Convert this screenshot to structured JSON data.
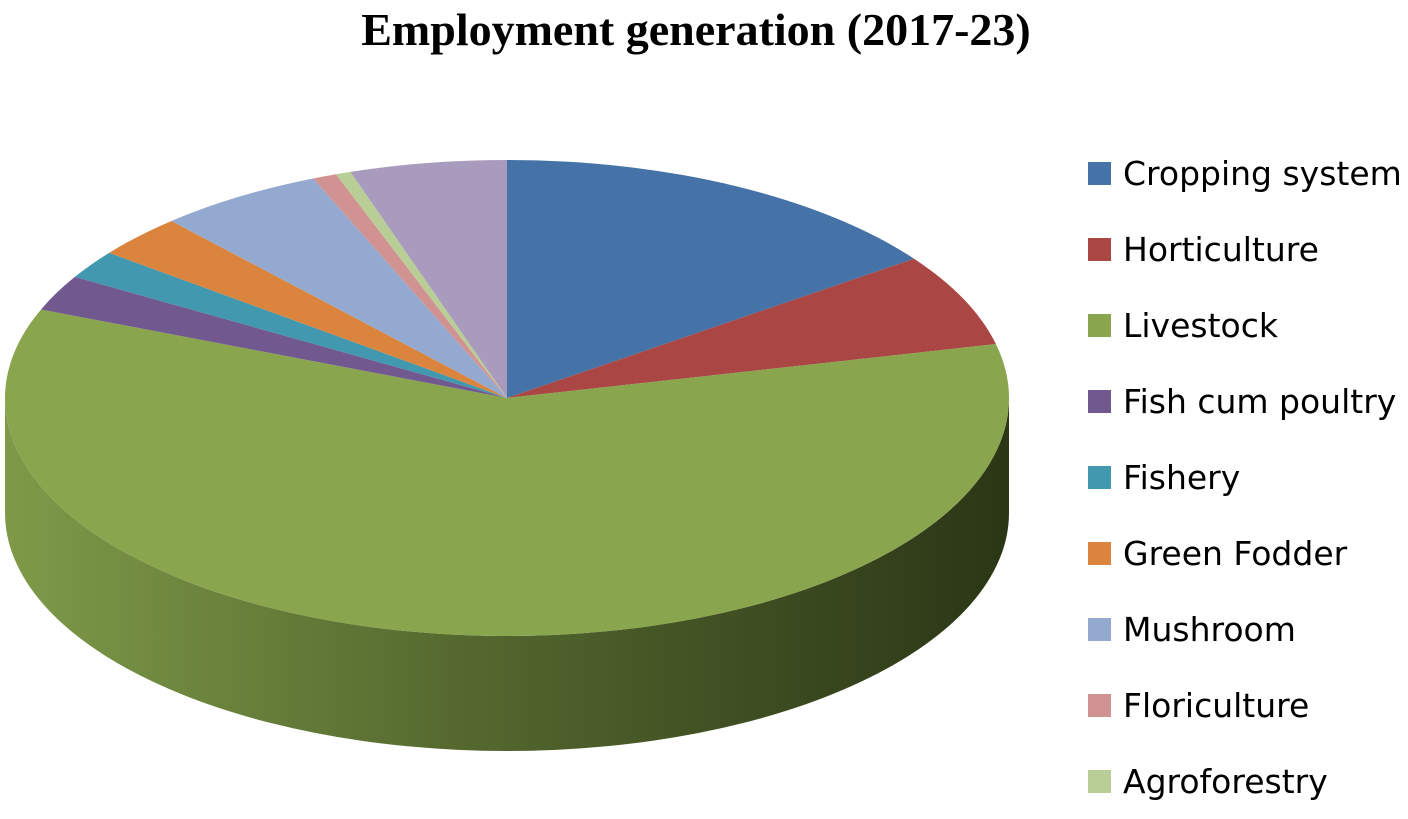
{
  "chart_data": {
    "type": "pie",
    "title": "Employment generation (2017-23)",
    "legend_position": "right",
    "three_d": true,
    "categories": [
      "Cropping system",
      "Horticulture",
      "Livestock",
      "Fish cum poultry",
      "Fishery",
      "Green Fodder",
      "Mushroom",
      "Floriculture",
      "Agroforestry",
      ""
    ],
    "values": [
      15.5,
      6.5,
      61.5,
      2.5,
      2.0,
      3.0,
      5.5,
      0.8,
      0.5,
      5.2
    ],
    "colors": [
      "#4572A7",
      "#AA4643",
      "#89A54E",
      "#71588F",
      "#4198AF",
      "#DB843D",
      "#93A9CF",
      "#D19392",
      "#B9CD96",
      "#A99BBD"
    ],
    "legend": [
      {
        "label": "Cropping system",
        "color": "#4572A7"
      },
      {
        "label": "Horticulture",
        "color": "#AA4643"
      },
      {
        "label": "Livestock",
        "color": "#89A54E"
      },
      {
        "label": "Fish cum poultry",
        "color": "#71588F"
      },
      {
        "label": "Fishery",
        "color": "#4198AF"
      },
      {
        "label": "Green Fodder",
        "color": "#DB843D"
      },
      {
        "label": "Mushroom",
        "color": "#93A9CF"
      },
      {
        "label": "Floriculture",
        "color": "#D19392"
      },
      {
        "label": "Agroforestry",
        "color": "#B9CD96"
      }
    ]
  }
}
